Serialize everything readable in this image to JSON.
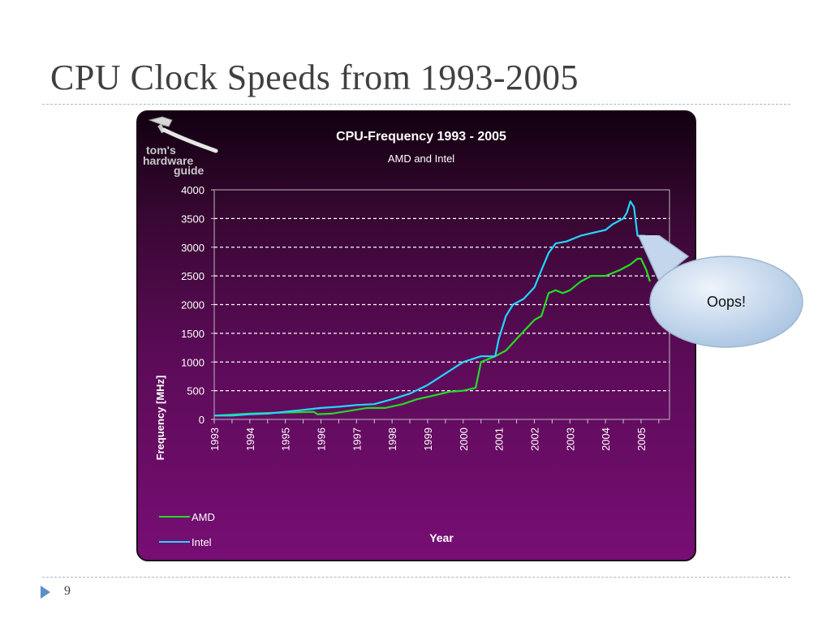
{
  "slide": {
    "title": "CPU Clock Speeds from 1993-2005",
    "page_number": "9"
  },
  "logo": {
    "line1": "tom's",
    "line2": "hardware",
    "line3": "guide"
  },
  "callout": {
    "text": "Oops!"
  },
  "colors": {
    "amd": "#22dd22",
    "intel": "#22d6ff",
    "accent": "#5b8fc7"
  },
  "chart_data": {
    "type": "line",
    "title": "CPU-Frequency 1993 - 2005",
    "subtitle": "AMD and Intel",
    "xlabel": "Year",
    "ylabel": "Frequency [MHz]",
    "xlim": [
      1993,
      2005.8
    ],
    "ylim": [
      0,
      4000
    ],
    "x_ticks": [
      "1993",
      "1994",
      "1995",
      "1996",
      "1997",
      "1998",
      "1999",
      "2000",
      "2001",
      "2002",
      "2003",
      "2004",
      "2005"
    ],
    "y_ticks": [
      "0",
      "500",
      "1000",
      "1500",
      "2000",
      "2500",
      "3000",
      "3500",
      "4000"
    ],
    "grid": "horizontal dashed",
    "legend": "bottom-left",
    "series": [
      {
        "name": "AMD",
        "color": "#22dd22",
        "points": [
          [
            1993,
            66
          ],
          [
            1994,
            100
          ],
          [
            1995,
            120
          ],
          [
            1995.8,
            133
          ],
          [
            1995.9,
            90
          ],
          [
            1996.3,
            100
          ],
          [
            1996.8,
            150
          ],
          [
            1997.3,
            200
          ],
          [
            1997.8,
            200
          ],
          [
            1998.3,
            266
          ],
          [
            1998.7,
            350
          ],
          [
            1999.2,
            420
          ],
          [
            1999.6,
            480
          ],
          [
            2000.0,
            500
          ],
          [
            2000.35,
            550
          ],
          [
            2000.5,
            1000
          ],
          [
            2000.9,
            1100
          ],
          [
            2001.2,
            1200
          ],
          [
            2001.5,
            1400
          ],
          [
            2001.8,
            1600
          ],
          [
            2002.0,
            1733
          ],
          [
            2002.2,
            1800
          ],
          [
            2002.4,
            2200
          ],
          [
            2002.6,
            2250
          ],
          [
            2002.8,
            2200
          ],
          [
            2003.0,
            2250
          ],
          [
            2003.3,
            2400
          ],
          [
            2003.6,
            2500
          ],
          [
            2004.0,
            2500
          ],
          [
            2004.4,
            2600
          ],
          [
            2004.7,
            2700
          ],
          [
            2004.9,
            2800
          ],
          [
            2005.0,
            2800
          ],
          [
            2005.15,
            2600
          ],
          [
            2005.25,
            2400
          ]
        ]
      },
      {
        "name": "Intel",
        "color": "#22d6ff",
        "points": [
          [
            1993,
            66
          ],
          [
            1993.5,
            66
          ],
          [
            1994,
            90
          ],
          [
            1994.5,
            100
          ],
          [
            1995,
            133
          ],
          [
            1995.5,
            166
          ],
          [
            1996,
            200
          ],
          [
            1996.5,
            220
          ],
          [
            1997,
            250
          ],
          [
            1997.5,
            266
          ],
          [
            1998,
            350
          ],
          [
            1998.5,
            450
          ],
          [
            1999,
            600
          ],
          [
            1999.5,
            800
          ],
          [
            2000,
            1000
          ],
          [
            2000.5,
            1100
          ],
          [
            2000.9,
            1100
          ],
          [
            2001.0,
            1400
          ],
          [
            2001.2,
            1800
          ],
          [
            2001.4,
            2000
          ],
          [
            2001.7,
            2100
          ],
          [
            2002.0,
            2300
          ],
          [
            2002.2,
            2600
          ],
          [
            2002.4,
            2900
          ],
          [
            2002.6,
            3066
          ],
          [
            2002.9,
            3100
          ],
          [
            2003.3,
            3200
          ],
          [
            2003.7,
            3260
          ],
          [
            2004.0,
            3300
          ],
          [
            2004.2,
            3400
          ],
          [
            2004.5,
            3500
          ],
          [
            2004.6,
            3600
          ],
          [
            2004.7,
            3800
          ],
          [
            2004.8,
            3700
          ],
          [
            2004.9,
            3200
          ],
          [
            2005.1,
            3200
          ],
          [
            2005.25,
            3150
          ]
        ]
      }
    ]
  }
}
